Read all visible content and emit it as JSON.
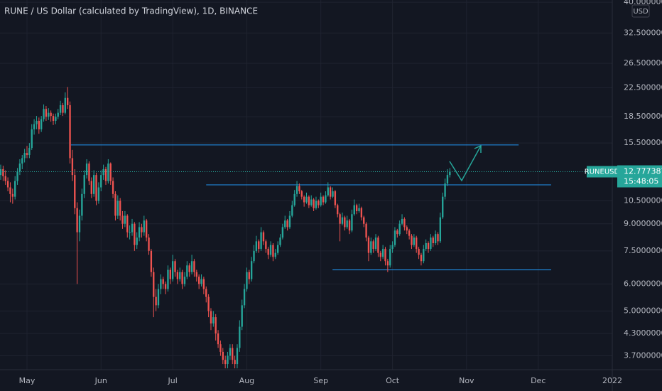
{
  "chart_data": {
    "type": "candlestick",
    "title": "RUNE / US Dollar (calculated by TradingView), 1D, BINANCE",
    "currency": "USD",
    "symbol": "RUNEUSD",
    "countdown": "15:48:05",
    "log": true,
    "grid": true,
    "up_color": "#26a69a",
    "down_color": "#ef5350",
    "line_color": "#2196f3",
    "xlim": [
      -0.3,
      256
    ],
    "xticks": [
      {
        "value": 11,
        "label": "May"
      },
      {
        "value": 42,
        "label": "Jun"
      },
      {
        "value": 72,
        "label": "Jul"
      },
      {
        "value": 103,
        "label": "Aug"
      },
      {
        "value": 134,
        "label": "Sep"
      },
      {
        "value": 164,
        "label": "Oct"
      },
      {
        "value": 195,
        "label": "Nov"
      },
      {
        "value": 225,
        "label": "Dec"
      },
      {
        "value": 256,
        "label": "2022"
      }
    ],
    "ylim": [
      3.37,
      40.6
    ],
    "yticks": [
      {
        "value": 40,
        "label": "40.0000000"
      },
      {
        "value": 32.5,
        "label": "32.5000000"
      },
      {
        "value": 26.5,
        "label": "26.5000000"
      },
      {
        "value": 22.5,
        "label": "22.5000000"
      },
      {
        "value": 18.5,
        "label": "18.5000000"
      },
      {
        "value": 15.5,
        "label": "15.5000000"
      },
      {
        "value": 10.5,
        "label": "10.5000000"
      },
      {
        "value": 9,
        "label": "9.0000000"
      },
      {
        "value": 7.5,
        "label": "7.5000000"
      },
      {
        "value": 6,
        "label": "6.0000000"
      },
      {
        "value": 5,
        "label": "5.0000000"
      },
      {
        "value": 4.3,
        "label": "4.3000000"
      },
      {
        "value": 3.7,
        "label": "3.7000000"
      }
    ],
    "levels": [
      {
        "price": 15.3,
        "from": 29.4,
        "to": 216.8
      },
      {
        "price": 11.7,
        "from": 86,
        "to": 230.4
      },
      {
        "price": 6.6,
        "from": 138.9,
        "to": 230.4
      }
    ],
    "candles": [
      [
        12.5,
        13.4,
        12.1,
        13.0
      ],
      [
        13.0,
        13.3,
        12.0,
        12.4
      ],
      [
        12.4,
        12.9,
        11.7,
        12.0
      ],
      [
        12.0,
        12.3,
        11.2,
        11.5
      ],
      [
        11.5,
        11.9,
        10.4,
        11.0
      ],
      [
        11.0,
        11.4,
        10.3,
        10.8
      ],
      [
        10.8,
        12.4,
        10.6,
        12.0
      ],
      [
        12.0,
        13.1,
        11.7,
        12.8
      ],
      [
        12.8,
        13.9,
        12.5,
        13.5
      ],
      [
        13.5,
        14.3,
        13.0,
        14.0
      ],
      [
        14.0,
        14.9,
        13.6,
        14.5
      ],
      [
        14.5,
        15.2,
        14.0,
        14.3
      ],
      [
        14.3,
        15.5,
        14.0,
        15.0
      ],
      [
        15.0,
        17.6,
        14.8,
        17.0
      ],
      [
        17.0,
        18.2,
        16.4,
        17.6
      ],
      [
        17.6,
        18.6,
        17.0,
        18.0
      ],
      [
        18.0,
        18.4,
        16.5,
        17.0
      ],
      [
        17.0,
        18.6,
        16.7,
        18.2
      ],
      [
        18.2,
        20.1,
        17.9,
        19.5
      ],
      [
        19.5,
        19.9,
        18.0,
        18.5
      ],
      [
        18.5,
        19.6,
        18.1,
        19.0
      ],
      [
        19.0,
        19.3,
        17.9,
        18.6
      ],
      [
        18.6,
        18.9,
        17.5,
        18.0
      ],
      [
        18.0,
        18.9,
        17.6,
        18.5
      ],
      [
        18.5,
        19.5,
        18.2,
        19.0
      ],
      [
        19.0,
        20.6,
        18.7,
        20.0
      ],
      [
        20.0,
        20.3,
        18.6,
        19.0
      ],
      [
        19.0,
        21.8,
        18.8,
        21.0
      ],
      [
        21.0,
        22.6,
        19.5,
        20.0
      ],
      [
        20.0,
        20.5,
        13.5,
        14.0
      ],
      [
        14.0,
        14.8,
        12.0,
        12.5
      ],
      [
        12.5,
        13.0,
        9.6,
        10.0
      ],
      [
        10.0,
        10.4,
        6.0,
        8.5
      ],
      [
        8.5,
        9.9,
        8.0,
        9.5
      ],
      [
        9.5,
        11.4,
        9.2,
        11.0
      ],
      [
        11.0,
        12.9,
        10.7,
        12.5
      ],
      [
        12.5,
        13.9,
        12.2,
        13.5
      ],
      [
        13.5,
        13.7,
        11.7,
        12.0
      ],
      [
        12.0,
        12.3,
        10.7,
        11.0
      ],
      [
        11.0,
        12.9,
        10.8,
        12.5
      ],
      [
        12.5,
        12.7,
        10.2,
        10.5
      ],
      [
        10.5,
        11.9,
        10.3,
        11.5
      ],
      [
        11.5,
        12.9,
        11.2,
        12.5
      ],
      [
        12.5,
        13.4,
        12.1,
        13.0
      ],
      [
        13.0,
        13.2,
        11.7,
        12.0
      ],
      [
        12.0,
        13.9,
        11.8,
        13.5
      ],
      [
        13.5,
        13.6,
        11.7,
        12.0
      ],
      [
        12.0,
        12.3,
        10.7,
        11.0
      ],
      [
        11.0,
        11.2,
        9.2,
        9.5
      ],
      [
        9.5,
        10.9,
        9.3,
        10.5
      ],
      [
        10.5,
        10.7,
        9.2,
        9.5
      ],
      [
        9.5,
        9.8,
        8.7,
        9.0
      ],
      [
        9.0,
        9.8,
        8.8,
        9.5
      ],
      [
        9.5,
        9.6,
        8.2,
        8.5
      ],
      [
        8.5,
        8.9,
        8.1,
        8.5
      ],
      [
        8.5,
        9.3,
        8.3,
        9.0
      ],
      [
        9.0,
        9.1,
        7.5,
        7.8
      ],
      [
        7.8,
        8.5,
        7.6,
        8.2
      ],
      [
        8.2,
        9.1,
        8.0,
        8.8
      ],
      [
        8.8,
        9.0,
        8.2,
        8.5
      ],
      [
        8.5,
        9.5,
        8.3,
        9.2
      ],
      [
        9.2,
        9.3,
        8.0,
        8.2
      ],
      [
        8.2,
        8.4,
        7.3,
        7.5
      ],
      [
        7.5,
        7.6,
        6.3,
        6.5
      ],
      [
        6.5,
        6.7,
        4.8,
        5.5
      ],
      [
        5.5,
        5.8,
        5.0,
        5.2
      ],
      [
        5.2,
        6.0,
        5.1,
        5.8
      ],
      [
        5.8,
        6.4,
        5.6,
        6.2
      ],
      [
        6.2,
        6.3,
        5.8,
        6.0
      ],
      [
        6.0,
        6.1,
        5.6,
        5.8
      ],
      [
        5.8,
        6.8,
        5.7,
        6.6
      ],
      [
        6.6,
        6.7,
        6.0,
        6.2
      ],
      [
        6.2,
        7.3,
        6.1,
        7.0
      ],
      [
        7.0,
        7.1,
        6.3,
        6.5
      ],
      [
        6.5,
        6.6,
        6.0,
        6.2
      ],
      [
        6.2,
        6.7,
        6.1,
        6.5
      ],
      [
        6.5,
        6.6,
        5.8,
        6.0
      ],
      [
        6.0,
        6.5,
        5.9,
        6.3
      ],
      [
        6.3,
        7.0,
        6.2,
        6.8
      ],
      [
        6.8,
        6.9,
        6.3,
        6.5
      ],
      [
        6.5,
        7.3,
        6.4,
        7.0
      ],
      [
        7.0,
        7.1,
        6.3,
        6.5
      ],
      [
        6.5,
        6.6,
        6.1,
        6.3
      ],
      [
        6.3,
        6.4,
        5.8,
        6.0
      ],
      [
        6.0,
        6.4,
        5.9,
        6.2
      ],
      [
        6.2,
        6.3,
        5.6,
        5.8
      ],
      [
        5.8,
        5.9,
        5.3,
        5.5
      ],
      [
        5.5,
        5.6,
        4.8,
        5.0
      ],
      [
        5.0,
        5.1,
        4.4,
        4.6
      ],
      [
        4.6,
        5.0,
        4.5,
        4.8
      ],
      [
        4.8,
        4.9,
        4.1,
        4.3
      ],
      [
        4.3,
        4.4,
        3.9,
        4.0
      ],
      [
        4.0,
        4.1,
        3.7,
        3.8
      ],
      [
        3.8,
        3.9,
        3.5,
        3.6
      ],
      [
        3.6,
        3.7,
        3.4,
        3.5
      ],
      [
        3.5,
        3.8,
        3.4,
        3.7
      ],
      [
        3.7,
        4.0,
        3.6,
        3.9
      ],
      [
        3.9,
        4.0,
        3.5,
        3.6
      ],
      [
        3.6,
        3.7,
        3.4,
        3.5
      ],
      [
        3.5,
        4.0,
        3.4,
        3.9
      ],
      [
        3.9,
        4.7,
        3.8,
        4.5
      ],
      [
        4.5,
        5.4,
        4.4,
        5.2
      ],
      [
        5.2,
        6.0,
        5.1,
        5.8
      ],
      [
        5.8,
        6.7,
        5.7,
        6.5
      ],
      [
        6.5,
        6.6,
        6.0,
        6.2
      ],
      [
        6.2,
        7.2,
        6.1,
        7.0
      ],
      [
        7.0,
        7.8,
        6.9,
        7.5
      ],
      [
        7.5,
        8.3,
        7.4,
        8.0
      ],
      [
        8.0,
        8.1,
        7.4,
        7.6
      ],
      [
        7.6,
        8.8,
        7.5,
        8.5
      ],
      [
        8.5,
        8.6,
        7.8,
        8.0
      ],
      [
        8.0,
        8.1,
        7.4,
        7.6
      ],
      [
        7.6,
        7.7,
        7.1,
        7.3
      ],
      [
        7.3,
        8.0,
        7.2,
        7.8
      ],
      [
        7.8,
        7.9,
        7.0,
        7.2
      ],
      [
        7.2,
        7.6,
        7.1,
        7.4
      ],
      [
        7.4,
        8.0,
        7.3,
        7.8
      ],
      [
        7.8,
        8.4,
        7.7,
        8.2
      ],
      [
        8.2,
        9.0,
        8.1,
        8.8
      ],
      [
        8.8,
        9.5,
        8.7,
        9.2
      ],
      [
        9.2,
        9.3,
        8.6,
        8.8
      ],
      [
        8.8,
        9.8,
        8.7,
        9.5
      ],
      [
        9.5,
        10.5,
        9.4,
        10.2
      ],
      [
        10.2,
        11.3,
        10.1,
        11.0
      ],
      [
        11.0,
        12.0,
        10.8,
        11.6
      ],
      [
        11.6,
        11.8,
        11.0,
        11.2
      ],
      [
        11.2,
        11.3,
        10.6,
        10.8
      ],
      [
        10.8,
        10.9,
        10.1,
        10.4
      ],
      [
        10.4,
        11.1,
        10.3,
        10.8
      ],
      [
        10.8,
        10.9,
        10.0,
        10.2
      ],
      [
        10.2,
        10.9,
        10.1,
        10.6
      ],
      [
        10.6,
        10.7,
        9.8,
        10.0
      ],
      [
        10.0,
        10.8,
        9.9,
        10.5
      ],
      [
        10.5,
        10.6,
        10.0,
        10.2
      ],
      [
        10.2,
        11.1,
        10.1,
        10.8
      ],
      [
        10.8,
        10.9,
        10.2,
        10.4
      ],
      [
        10.4,
        11.2,
        10.3,
        10.9
      ],
      [
        10.9,
        11.9,
        10.8,
        11.5
      ],
      [
        11.5,
        11.6,
        10.6,
        10.8
      ],
      [
        10.8,
        11.5,
        10.7,
        11.2
      ],
      [
        11.2,
        11.3,
        10.0,
        10.2
      ],
      [
        10.2,
        10.3,
        9.4,
        9.6
      ],
      [
        9.6,
        9.7,
        8.0,
        9.0
      ],
      [
        9.0,
        9.7,
        8.9,
        9.4
      ],
      [
        9.4,
        9.5,
        8.6,
        8.8
      ],
      [
        8.8,
        9.5,
        8.7,
        9.2
      ],
      [
        9.2,
        9.3,
        8.4,
        8.6
      ],
      [
        8.6,
        9.9,
        8.5,
        9.6
      ],
      [
        9.6,
        10.6,
        9.5,
        10.2
      ],
      [
        10.2,
        10.3,
        9.6,
        9.8
      ],
      [
        9.8,
        10.3,
        9.7,
        10.0
      ],
      [
        10.0,
        10.1,
        9.2,
        9.4
      ],
      [
        9.4,
        9.5,
        8.8,
        9.0
      ],
      [
        9.0,
        9.1,
        8.0,
        8.2
      ],
      [
        8.2,
        8.3,
        7.0,
        7.4
      ],
      [
        7.4,
        8.2,
        7.3,
        8.0
      ],
      [
        8.0,
        8.1,
        7.4,
        7.6
      ],
      [
        7.6,
        8.4,
        7.5,
        8.2
      ],
      [
        8.2,
        8.3,
        7.2,
        7.4
      ],
      [
        7.4,
        7.5,
        7.0,
        7.2
      ],
      [
        7.2,
        7.8,
        7.1,
        7.6
      ],
      [
        7.6,
        7.7,
        6.8,
        7.0
      ],
      [
        7.0,
        7.1,
        6.5,
        6.8
      ],
      [
        6.8,
        7.8,
        6.7,
        7.6
      ],
      [
        7.6,
        8.0,
        7.4,
        7.8
      ],
      [
        7.8,
        8.8,
        7.7,
        8.6
      ],
      [
        8.6,
        8.7,
        8.2,
        8.4
      ],
      [
        8.4,
        9.2,
        8.3,
        9.0
      ],
      [
        9.0,
        9.6,
        8.9,
        9.3
      ],
      [
        9.3,
        9.4,
        8.6,
        8.8
      ],
      [
        8.8,
        8.9,
        8.4,
        8.6
      ],
      [
        8.6,
        8.7,
        8.1,
        8.3
      ],
      [
        8.3,
        8.4,
        7.6,
        7.8
      ],
      [
        7.8,
        8.4,
        7.7,
        8.2
      ],
      [
        8.2,
        8.3,
        7.4,
        7.6
      ],
      [
        7.6,
        7.7,
        7.1,
        7.3
      ],
      [
        7.3,
        7.4,
        6.8,
        7.0
      ],
      [
        7.0,
        7.8,
        6.9,
        7.6
      ],
      [
        7.6,
        8.1,
        7.5,
        7.9
      ],
      [
        7.9,
        8.0,
        7.4,
        7.6
      ],
      [
        7.6,
        8.4,
        7.5,
        8.2
      ],
      [
        8.2,
        8.3,
        7.7,
        7.9
      ],
      [
        7.9,
        8.6,
        7.8,
        8.4
      ],
      [
        8.4,
        8.5,
        7.8,
        8.0
      ],
      [
        8.0,
        9.7,
        7.9,
        9.4
      ],
      [
        9.4,
        11.1,
        9.3,
        10.8
      ],
      [
        10.8,
        12.2,
        10.6,
        11.8
      ],
      [
        11.8,
        13.0,
        11.6,
        12.5
      ],
      [
        12.5,
        13.1,
        12.3,
        12.7773877
      ]
    ]
  }
}
